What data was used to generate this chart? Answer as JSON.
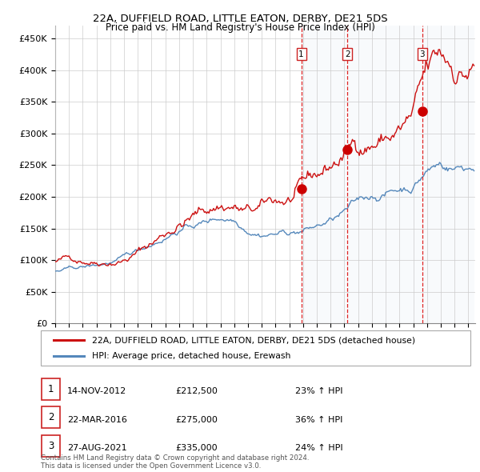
{
  "title1": "22A, DUFFIELD ROAD, LITTLE EATON, DERBY, DE21 5DS",
  "title2": "Price paid vs. HM Land Registry's House Price Index (HPI)",
  "ylabel_ticks": [
    "£0",
    "£50K",
    "£100K",
    "£150K",
    "£200K",
    "£250K",
    "£300K",
    "£350K",
    "£400K",
    "£450K"
  ],
  "ytick_vals": [
    0,
    50000,
    100000,
    150000,
    200000,
    250000,
    300000,
    350000,
    400000,
    450000
  ],
  "ylim": [
    0,
    470000
  ],
  "xlim_start": 1995.0,
  "xlim_end": 2025.5,
  "sale_dates": [
    2012.87,
    2016.22,
    2021.65
  ],
  "sale_prices": [
    212500,
    275000,
    335000
  ],
  "sale_labels": [
    "1",
    "2",
    "3"
  ],
  "vline_color": "#dd2222",
  "sale_dot_color": "#cc0000",
  "red_line_color": "#cc1111",
  "blue_line_color": "#5588bb",
  "blue_fill_color": "#c8d8ee",
  "background_color": "#ffffff",
  "grid_color": "#cccccc",
  "legend1": "22A, DUFFIELD ROAD, LITTLE EATON, DERBY, DE21 5DS (detached house)",
  "legend2": "HPI: Average price, detached house, Erewash",
  "table_data": [
    [
      "1",
      "14-NOV-2012",
      "£212,500",
      "23% ↑ HPI"
    ],
    [
      "2",
      "22-MAR-2016",
      "£275,000",
      "36% ↑ HPI"
    ],
    [
      "3",
      "27-AUG-2021",
      "£335,000",
      "24% ↑ HPI"
    ]
  ],
  "footnote": "Contains HM Land Registry data © Crown copyright and database right 2024.\nThis data is licensed under the Open Government Licence v3.0."
}
